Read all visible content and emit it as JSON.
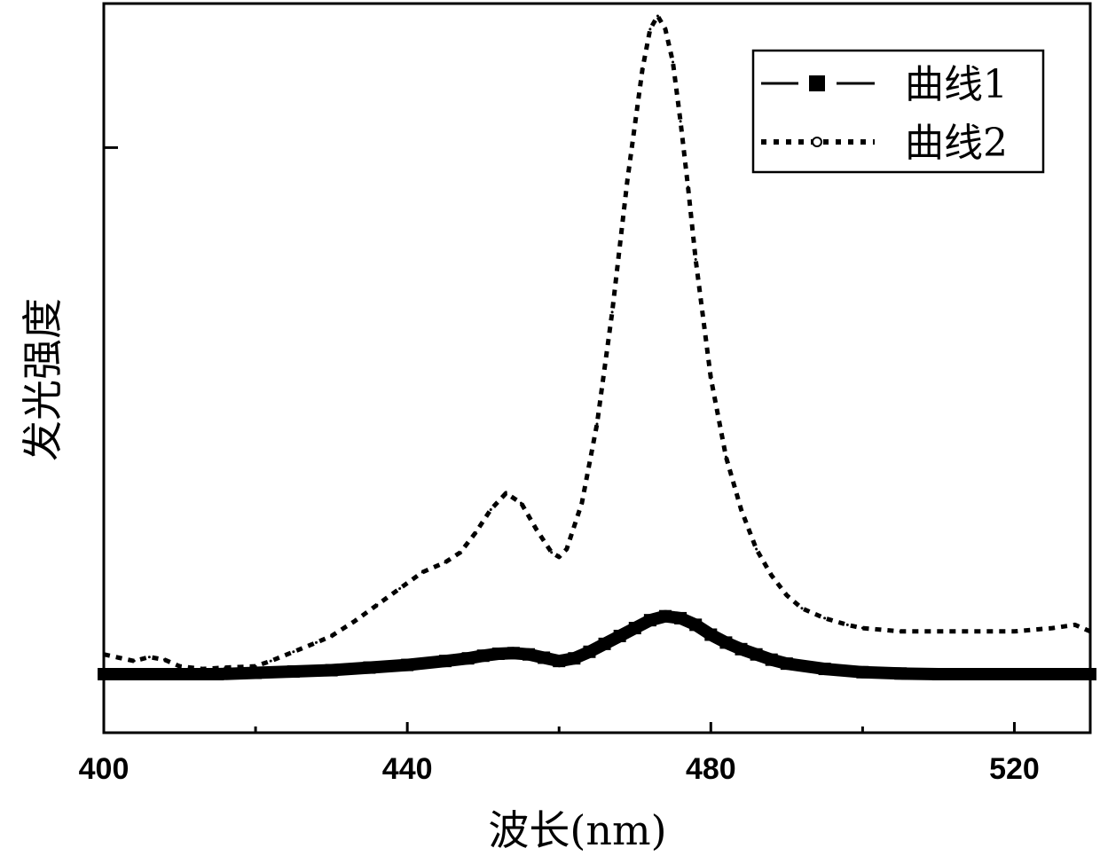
{
  "chart_data": {
    "type": "line",
    "xlabel": "波长(nm)",
    "ylabel": "发光强度",
    "xlim": [
      400,
      530
    ],
    "ylim": [
      0,
      1.0
    ],
    "x_ticks": [
      400,
      440,
      480,
      520
    ],
    "x_minor_ticks": [
      420,
      460,
      500
    ],
    "y_ticks_unlabeled": [
      0.8
    ],
    "grid": false,
    "legend_position": "top-right",
    "series": [
      {
        "name": "曲线1",
        "style": "solid-square-markers",
        "color": "#000000",
        "x": [
          400,
          405,
          410,
          415,
          420,
          425,
          430,
          435,
          440,
          445,
          448,
          450,
          452,
          454,
          456,
          458,
          460,
          462,
          464,
          466,
          468,
          470,
          472,
          474,
          476,
          478,
          480,
          482,
          484,
          486,
          488,
          490,
          495,
          500,
          505,
          510,
          515,
          520,
          525,
          530
        ],
        "y": [
          0.0,
          0.0,
          0.0,
          0.0,
          0.002,
          0.004,
          0.006,
          0.01,
          0.014,
          0.02,
          0.024,
          0.028,
          0.031,
          0.032,
          0.03,
          0.025,
          0.02,
          0.024,
          0.034,
          0.046,
          0.058,
          0.07,
          0.082,
          0.088,
          0.085,
          0.075,
          0.06,
          0.048,
          0.038,
          0.03,
          0.022,
          0.016,
          0.008,
          0.003,
          0.001,
          0.0,
          0.0,
          0.0,
          0.0,
          0.0
        ]
      },
      {
        "name": "曲线2",
        "style": "dotted-circle-markers",
        "color": "#000000",
        "x": [
          400,
          402,
          404,
          406,
          408,
          410,
          413,
          416,
          420,
          422,
          425,
          428,
          430,
          433,
          436,
          439,
          442,
          445,
          447,
          449,
          451,
          453,
          455,
          457,
          459,
          460,
          461,
          463,
          465,
          467,
          469,
          471,
          472,
          473,
          474,
          475,
          476,
          477,
          478,
          480,
          482,
          484,
          486,
          488,
          490,
          492,
          495,
          498,
          500,
          505,
          510,
          515,
          520,
          525,
          528,
          530
        ],
        "y": [
          0.03,
          0.025,
          0.02,
          0.026,
          0.022,
          0.012,
          0.008,
          0.01,
          0.012,
          0.02,
          0.034,
          0.048,
          0.058,
          0.08,
          0.105,
          0.13,
          0.155,
          0.17,
          0.185,
          0.215,
          0.25,
          0.275,
          0.26,
          0.22,
          0.185,
          0.178,
          0.19,
          0.26,
          0.38,
          0.55,
          0.75,
          0.92,
          0.98,
          1.0,
          0.98,
          0.93,
          0.84,
          0.74,
          0.63,
          0.45,
          0.33,
          0.25,
          0.19,
          0.15,
          0.12,
          0.1,
          0.085,
          0.075,
          0.07,
          0.065,
          0.065,
          0.065,
          0.065,
          0.07,
          0.075,
          0.065
        ]
      }
    ]
  }
}
